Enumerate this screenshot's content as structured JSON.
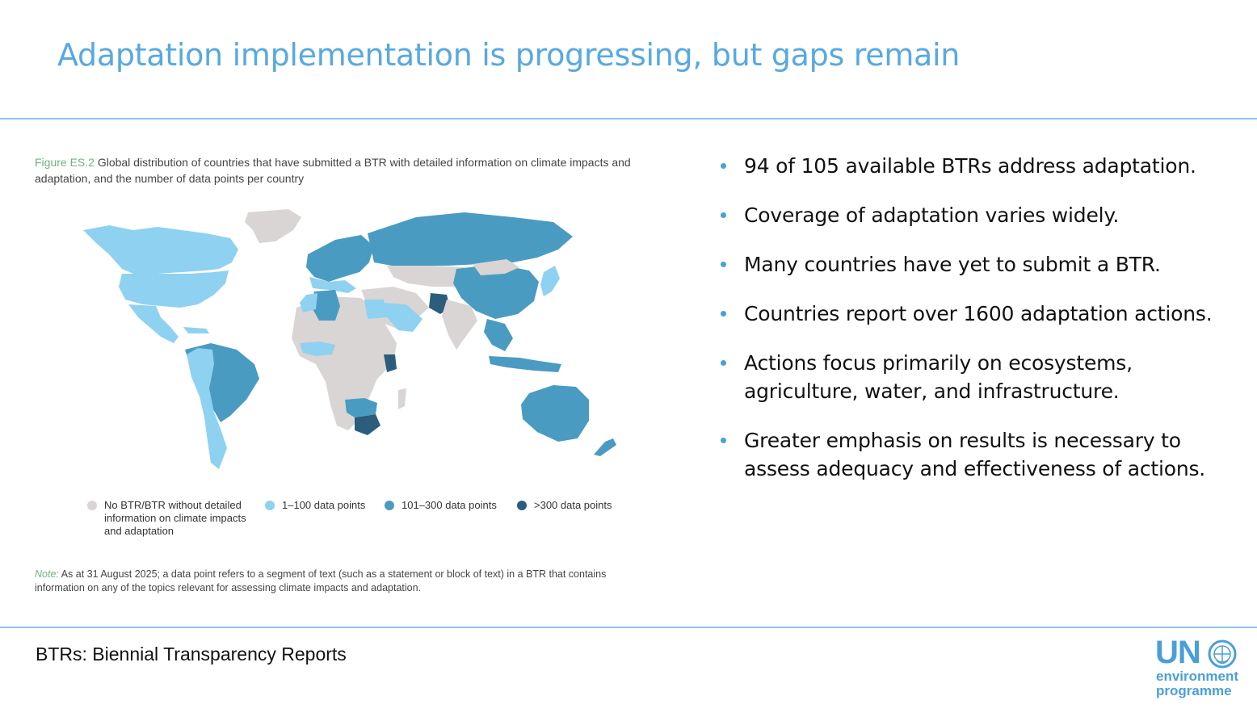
{
  "slide": {
    "title": "Adaptation implementation is progressing, but gaps remain",
    "footnote": "BTRs: Biennial Transparency Reports"
  },
  "figure": {
    "label": "Figure ES.2",
    "caption": "Global distribution of countries that have submitted a BTR with detailed information on climate impacts and adaptation, and the number of data points per country",
    "legend": [
      {
        "label": "No BTR/BTR without detailed information on climate impacts and adaptation",
        "color": "#d9d5d4"
      },
      {
        "label": "1–100 data points",
        "color": "#8fd1f0"
      },
      {
        "label": "101–300 data points",
        "color": "#4a9bc2"
      },
      {
        "label": ">300 data points",
        "color": "#2c5d7c"
      }
    ],
    "note_label": "Note:",
    "note": "As at 31 August 2025; a data point refers to a segment of text (such as a statement or block of text) in a BTR that contains information on any of the topics relevant for assessing climate impacts and adaptation."
  },
  "bullets": [
    "94 of 105 available BTRs address adaptation.",
    "Coverage of adaptation varies widely.",
    "Many countries have yet to submit a BTR.",
    "Countries report over 1600 adaptation actions.",
    "Actions focus primarily on ecosystems, agriculture, water, and infrastructure.",
    "Greater emphasis on results is necessary to assess adequacy and effectiveness of actions."
  ],
  "logo": {
    "un": "UN",
    "line1": "environment",
    "line2": "programme"
  },
  "colors": {
    "accent": "#58a9e1",
    "no_btr": "#d9d5d4",
    "low": "#8fd1f0",
    "mid": "#4a9bc2",
    "high": "#2c5d7c"
  }
}
